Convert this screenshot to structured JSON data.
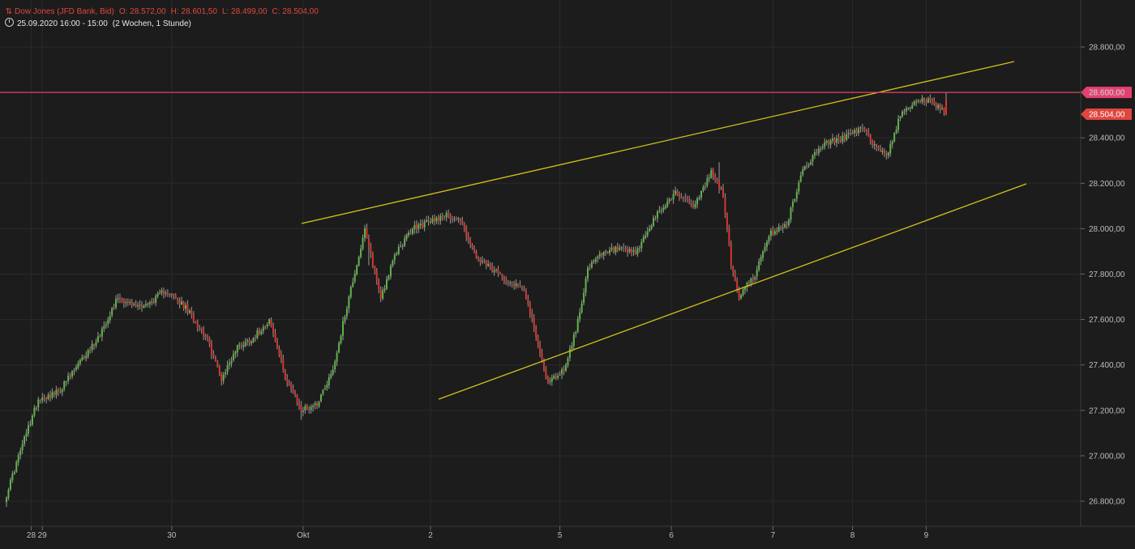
{
  "header": {
    "instrument": "Dow Jones (JFD Bank, Bid)",
    "open": "O: 28.572,00",
    "high": "H: 28.601,50",
    "low": "L: 28.499,00",
    "close": "C: 28.504,00",
    "range": "25.09.2020 16:00 - 15:00",
    "period": "(2 Wochen, 1 Stunde)"
  },
  "colors": {
    "background": "#1c1c1c",
    "up": "#5fb548",
    "down": "#d8362f",
    "trendline": "#d4c11a",
    "resistance": "#e64071",
    "last_price": "#e0463e",
    "grid": "#2a2a2a"
  },
  "chart_data": {
    "type": "candlestick",
    "y_ticks": [
      "26.800,00",
      "27.000,00",
      "27.200,00",
      "27.400,00",
      "27.600,00",
      "27.800,00",
      "28.000,00",
      "28.200,00",
      "28.400,00",
      "28.600,00",
      "28.800,00"
    ],
    "y_tick_values": [
      26800,
      27000,
      27200,
      27400,
      27600,
      27800,
      28000,
      28200,
      28400,
      28600,
      28800
    ],
    "x_ticks": [
      "28",
      "29",
      "30",
      "Okt",
      "2",
      "5",
      "6",
      "7",
      "8",
      "9"
    ],
    "ylim": [
      26600,
      28880
    ],
    "grid": true,
    "resistance": {
      "value": 28600,
      "label": "28.600,00"
    },
    "last_price": {
      "value": 28504,
      "label": "28.504,00"
    },
    "trendlines": [
      {
        "from": [
          0,
          28020
        ],
        "to": [
          1,
          28740
        ]
      },
      {
        "from": [
          0,
          27250
        ],
        "to": [
          1,
          28190
        ]
      }
    ],
    "anchors": [
      [
        0,
        26830
      ],
      [
        8,
        27050
      ],
      [
        16,
        27250
      ],
      [
        26,
        27280
      ],
      [
        36,
        27400
      ],
      [
        46,
        27520
      ],
      [
        56,
        27700
      ],
      [
        64,
        27660
      ],
      [
        72,
        27670
      ],
      [
        80,
        27730
      ],
      [
        90,
        27650
      ],
      [
        100,
        27530
      ],
      [
        108,
        27340
      ],
      [
        116,
        27480
      ],
      [
        124,
        27520
      ],
      [
        132,
        27600
      ],
      [
        140,
        27350
      ],
      [
        148,
        27200
      ],
      [
        156,
        27230
      ],
      [
        164,
        27380
      ],
      [
        172,
        27700
      ],
      [
        180,
        27990
      ],
      [
        188,
        27700
      ],
      [
        196,
        27900
      ],
      [
        204,
        28000
      ],
      [
        212,
        28030
      ],
      [
        220,
        28060
      ],
      [
        228,
        28040
      ],
      [
        236,
        27870
      ],
      [
        244,
        27820
      ],
      [
        252,
        27770
      ],
      [
        260,
        27740
      ],
      [
        266,
        27520
      ],
      [
        272,
        27320
      ],
      [
        280,
        27380
      ],
      [
        286,
        27550
      ],
      [
        292,
        27820
      ],
      [
        298,
        27880
      ],
      [
        306,
        27910
      ],
      [
        316,
        27890
      ],
      [
        326,
        28050
      ],
      [
        336,
        28160
      ],
      [
        346,
        28100
      ],
      [
        354,
        28250
      ],
      [
        360,
        28150
      ],
      [
        364,
        27840
      ],
      [
        368,
        27700
      ],
      [
        376,
        27800
      ],
      [
        384,
        27980
      ],
      [
        392,
        28020
      ],
      [
        400,
        28260
      ],
      [
        410,
        28370
      ],
      [
        420,
        28400
      ],
      [
        430,
        28440
      ],
      [
        436,
        28370
      ],
      [
        442,
        28320
      ],
      [
        450,
        28520
      ],
      [
        458,
        28570
      ],
      [
        464,
        28560
      ],
      [
        472,
        28504
      ]
    ],
    "day_start_indices": [
      18,
      83,
      149,
      213,
      278,
      334,
      385,
      425,
      462
    ],
    "last_candle": {
      "open": 28572,
      "high": 28601.5,
      "low": 28499,
      "close": 28504
    }
  }
}
